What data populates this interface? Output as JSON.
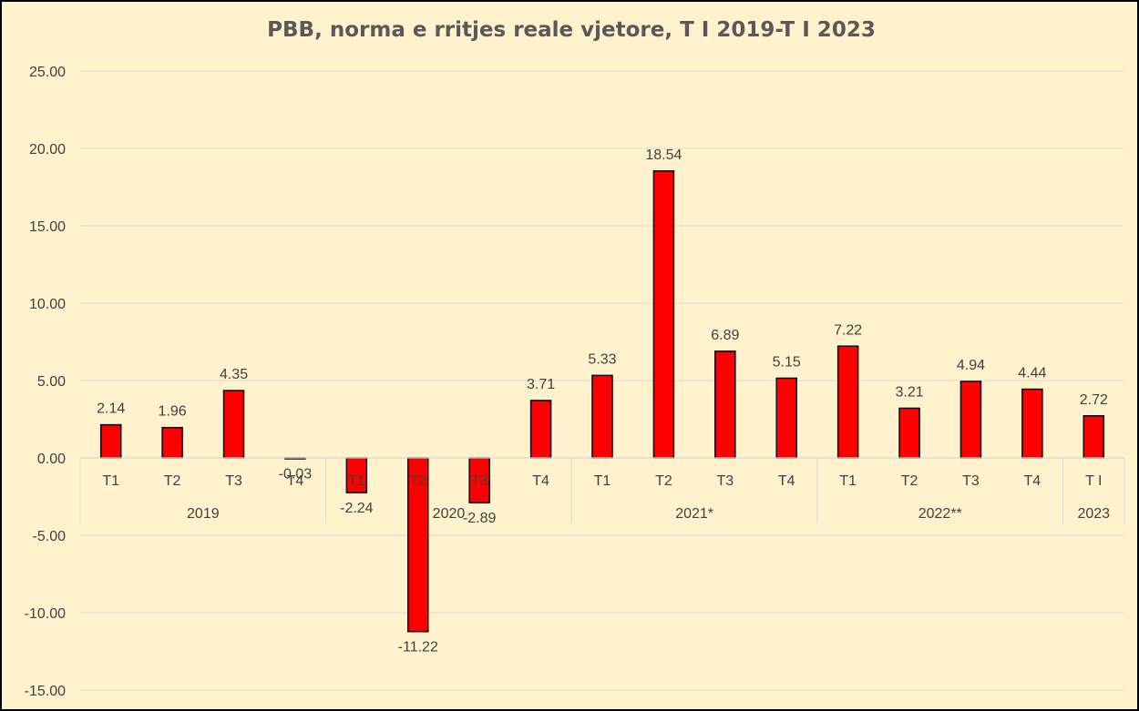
{
  "chart_data": {
    "type": "bar",
    "title": "PBB, norma e rritjes reale vjetore, T I 2019-T I 2023",
    "xlabel": "",
    "ylabel": "",
    "ylim": [
      -15,
      25
    ],
    "yticks": [
      25,
      20,
      15,
      10,
      5,
      0,
      -5,
      -10,
      -15
    ],
    "ytick_labels": [
      "25.00",
      "20.00",
      "15.00",
      "10.00",
      "5.00",
      "0.00",
      "-5.00",
      "-10.00",
      "-15.00"
    ],
    "grid": true,
    "legend": "none",
    "categories": [
      "T1",
      "T2",
      "T3",
      "T4",
      "T1",
      "T2",
      "T3",
      "T4",
      "T1",
      "T2",
      "T3",
      "T4",
      "T1",
      "T2",
      "T3",
      "T4",
      "T I"
    ],
    "values": [
      2.14,
      1.96,
      4.35,
      -0.03,
      -2.24,
      -11.22,
      -2.89,
      3.71,
      5.33,
      18.54,
      6.89,
      5.15,
      7.22,
      3.21,
      4.94,
      4.44,
      2.72
    ],
    "data_labels": [
      "2.14",
      "1.96",
      "4.35",
      "-0.03",
      "-2.24",
      "-11.22",
      "-2.89",
      "3.71",
      "5.33",
      "18.54",
      "6.89",
      "5.15",
      "7.22",
      "3.21",
      "4.94",
      "4.44",
      "2.72"
    ],
    "groups": [
      {
        "label": "2019",
        "count": 4
      },
      {
        "label": "2020",
        "count": 4
      },
      {
        "label": "2021*",
        "count": 4
      },
      {
        "label": "2022**",
        "count": 4
      },
      {
        "label": "2023",
        "count": 1
      }
    ],
    "colors": {
      "bar_fill": "#ff0000",
      "bar_stroke": "#000000",
      "background": "#fff2cc",
      "grid": "#d9d9d9",
      "text": "#404040",
      "title": "#595959"
    }
  }
}
